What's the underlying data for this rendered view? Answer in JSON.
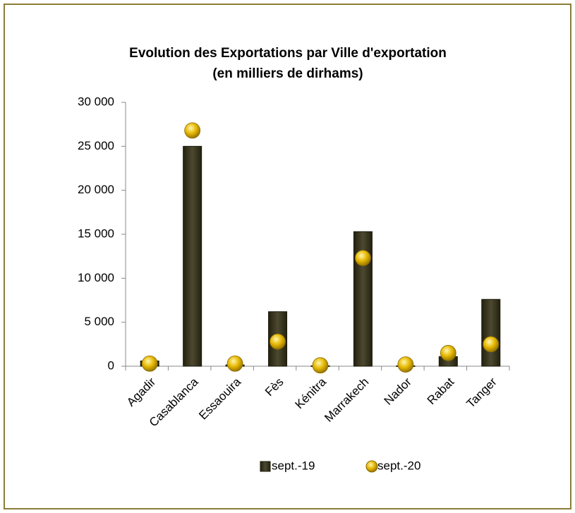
{
  "chart_data": {
    "type": "bar",
    "title": "Evolution des Exportations par Ville d'exportation",
    "subtitle": "(en milliers de dirhams)",
    "categories": [
      "Agadir",
      "Casablanca",
      "Essaouira",
      "Fès",
      "Kénitra",
      "Marrakech",
      "Nador",
      "Rabat",
      "Tanger"
    ],
    "series": [
      {
        "name": "sept.-19",
        "type": "bar",
        "color": "#3d3a24",
        "values": [
          600,
          25000,
          150,
          6200,
          50,
          15300,
          50,
          1100,
          7600
        ]
      },
      {
        "name": "sept.-20",
        "type": "dot",
        "color": "#e6b800",
        "values": [
          300,
          26800,
          300,
          2800,
          100,
          12300,
          200,
          1500,
          2500
        ]
      }
    ],
    "ylim": [
      0,
      30000
    ],
    "yticks": [
      0,
      {
        "value": 5000,
        "label": "5 000"
      },
      {
        "value": 10000,
        "label": "10 000"
      },
      {
        "value": 15000,
        "label": "15 000"
      },
      {
        "value": 20000,
        "label": "20 000"
      },
      {
        "value": 25000,
        "label": "25 000"
      },
      {
        "value": 30000,
        "label": "30 000"
      }
    ],
    "legend": "bottom"
  }
}
